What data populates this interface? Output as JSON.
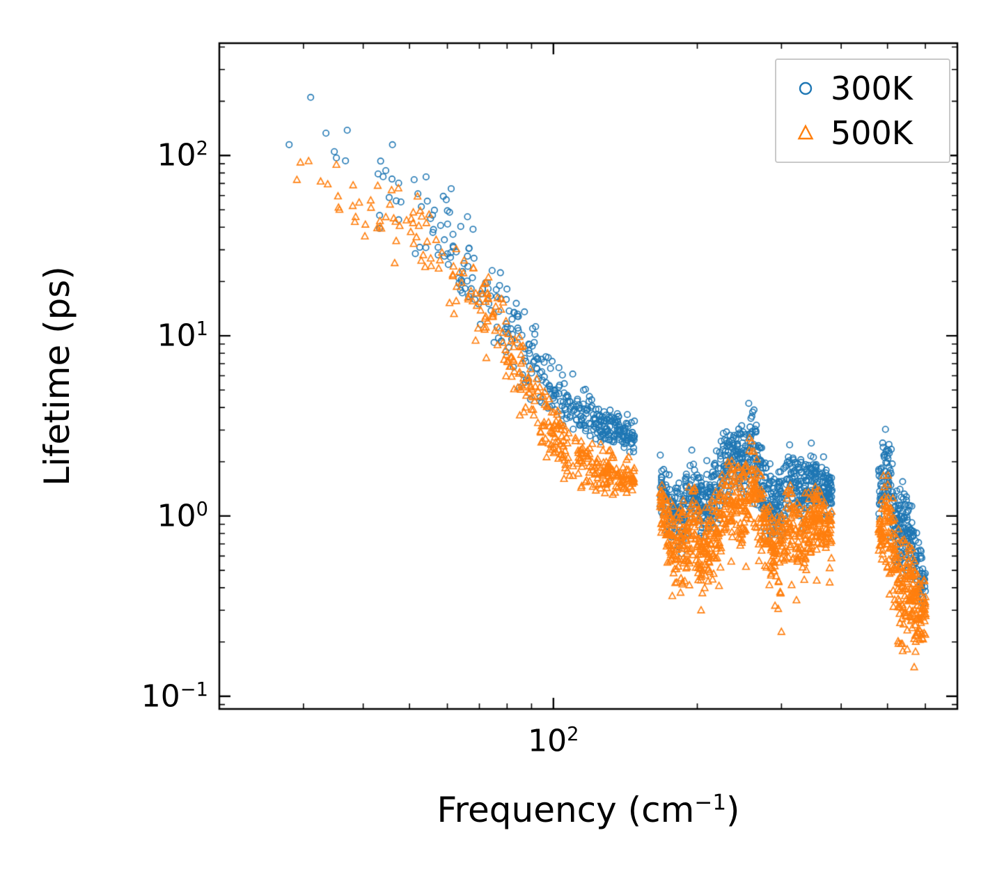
{
  "labels": {
    "ylabel": "Lifetime (ps)",
    "xlabel_pre": "Frequency (cm",
    "xlabel_sup": "−1",
    "xlabel_post": ")",
    "y_ticks": [
      {
        "base": "10",
        "exp": "−1"
      },
      {
        "base": "10",
        "exp": "0"
      },
      {
        "base": "10",
        "exp": "1"
      },
      {
        "base": "10",
        "exp": "2"
      }
    ],
    "x_ticks": [
      {
        "base": "10",
        "exp": "2"
      }
    ]
  },
  "chart_data": {
    "type": "scatter",
    "title": "",
    "xlabel": "Frequency (cm⁻¹)",
    "ylabel": "Lifetime (ps)",
    "xscale": "log",
    "yscale": "log",
    "xlim": [
      20,
      700
    ],
    "ylim": [
      0.085,
      420
    ],
    "grid": false,
    "x_major_ticks": [
      100
    ],
    "x_minor_ticks": [
      30,
      40,
      50,
      60,
      70,
      80,
      90,
      200,
      300,
      400,
      500,
      600
    ],
    "y_major_ticks": [
      0.1,
      1,
      10,
      100
    ],
    "y_minor_ticks": [
      0.09,
      0.2,
      0.3,
      0.4,
      0.5,
      0.6,
      0.7,
      0.8,
      0.9,
      2,
      3,
      4,
      5,
      6,
      7,
      8,
      9,
      20,
      30,
      40,
      50,
      60,
      70,
      80,
      90,
      200,
      300,
      400
    ],
    "frequency_gaps": [
      [
        148,
        167
      ],
      [
        383,
        479
      ]
    ],
    "legend": {
      "position": "upper right",
      "entries": [
        {
          "label": "300K",
          "marker": "circle",
          "color": "#1f77b4"
        },
        {
          "label": "500K",
          "marker": "triangle",
          "color": "#ff7f0e"
        }
      ]
    },
    "seed": 9,
    "series": [
      {
        "name": "300K",
        "marker": "circle",
        "color": "#1f77b4",
        "bands": [
          {
            "freq_range": [
              23,
              148
            ],
            "count": 380,
            "freq_bias": 0.35,
            "envelope": [
              [
                23,
                2.28,
                0.12
              ],
              [
                32,
                2.05,
                0.22
              ],
              [
                45,
                1.82,
                0.2
              ],
              [
                60,
                1.55,
                0.18
              ],
              [
                72,
                1.25,
                0.18
              ],
              [
                85,
                0.95,
                0.15
              ],
              [
                100,
                0.7,
                0.11
              ],
              [
                115,
                0.58,
                0.09
              ],
              [
                130,
                0.5,
                0.07
              ],
              [
                148,
                0.44,
                0.06
              ]
            ]
          },
          {
            "freq_range": [
              167,
              383
            ],
            "count": 780,
            "freq_bias": 1.0,
            "envelope": [
              [
                167,
                0.2,
                0.1
              ],
              [
                176,
                0.02,
                0.13
              ],
              [
                185,
                -0.02,
                0.13
              ],
              [
                195,
                0.14,
                0.14
              ],
              [
                205,
                0.06,
                0.14
              ],
              [
                215,
                0.1,
                0.14
              ],
              [
                228,
                0.28,
                0.15
              ],
              [
                240,
                0.34,
                0.16
              ],
              [
                252,
                0.3,
                0.16
              ],
              [
                258,
                0.42,
                0.17
              ],
              [
                266,
                0.3,
                0.16
              ],
              [
                278,
                0.12,
                0.14
              ],
              [
                290,
                0.06,
                0.13
              ],
              [
                302,
                0.1,
                0.14
              ],
              [
                312,
                0.22,
                0.14
              ],
              [
                322,
                0.16,
                0.13
              ],
              [
                334,
                0.1,
                0.13
              ],
              [
                348,
                0.2,
                0.12
              ],
              [
                362,
                0.16,
                0.11
              ],
              [
                383,
                0.12,
                0.1
              ]
            ]
          },
          {
            "freq_range": [
              479,
              601
            ],
            "count": 240,
            "freq_bias": 1.0,
            "envelope": [
              [
                479,
                0.1,
                0.14
              ],
              [
                492,
                0.26,
                0.15
              ],
              [
                505,
                0.18,
                0.16
              ],
              [
                518,
                0.0,
                0.16
              ],
              [
                532,
                -0.12,
                0.18
              ],
              [
                548,
                -0.06,
                0.16
              ],
              [
                565,
                -0.18,
                0.15
              ],
              [
                580,
                -0.3,
                0.13
              ],
              [
                601,
                -0.38,
                0.1
              ]
            ]
          }
        ]
      },
      {
        "name": "500K",
        "marker": "triangle",
        "color": "#ff7f0e",
        "bands": [
          {
            "freq_range": [
              23,
              148
            ],
            "count": 380,
            "freq_bias": 0.35,
            "envelope": [
              [
                23,
                2.06,
                0.1
              ],
              [
                32,
                1.8,
                0.18
              ],
              [
                45,
                1.62,
                0.16
              ],
              [
                60,
                1.4,
                0.15
              ],
              [
                72,
                1.12,
                0.15
              ],
              [
                85,
                0.8,
                0.14
              ],
              [
                100,
                0.42,
                0.12
              ],
              [
                115,
                0.3,
                0.1
              ],
              [
                130,
                0.24,
                0.08
              ],
              [
                148,
                0.2,
                0.07
              ]
            ]
          },
          {
            "freq_range": [
              167,
              383
            ],
            "count": 800,
            "freq_bias": 1.0,
            "low_tail": {
              "frac": 0.06,
              "mag": 0.3
            },
            "envelope": [
              [
                167,
                0.05,
                0.1
              ],
              [
                176,
                -0.12,
                0.14
              ],
              [
                185,
                -0.18,
                0.15
              ],
              [
                195,
                -0.02,
                0.15
              ],
              [
                205,
                -0.22,
                0.16
              ],
              [
                215,
                -0.12,
                0.15
              ],
              [
                228,
                0.05,
                0.15
              ],
              [
                240,
                0.12,
                0.16
              ],
              [
                252,
                0.1,
                0.16
              ],
              [
                258,
                0.22,
                0.16
              ],
              [
                266,
                0.1,
                0.16
              ],
              [
                278,
                -0.1,
                0.15
              ],
              [
                290,
                -0.18,
                0.15
              ],
              [
                302,
                -0.15,
                0.15
              ],
              [
                312,
                -0.02,
                0.14
              ],
              [
                322,
                -0.08,
                0.14
              ],
              [
                334,
                -0.12,
                0.14
              ],
              [
                348,
                -0.02,
                0.12
              ],
              [
                362,
                -0.06,
                0.12
              ],
              [
                383,
                -0.1,
                0.1
              ]
            ]
          },
          {
            "freq_range": [
              479,
              601
            ],
            "count": 270,
            "freq_bias": 1.0,
            "low_tail": {
              "frac": 0.08,
              "mag": 0.25
            },
            "envelope": [
              [
                479,
                -0.1,
                0.14
              ],
              [
                492,
                0.02,
                0.16
              ],
              [
                505,
                -0.05,
                0.17
              ],
              [
                518,
                -0.25,
                0.18
              ],
              [
                532,
                -0.45,
                0.24
              ],
              [
                548,
                -0.35,
                0.18
              ],
              [
                565,
                -0.42,
                0.16
              ],
              [
                580,
                -0.52,
                0.13
              ],
              [
                601,
                -0.55,
                0.1
              ]
            ]
          }
        ]
      }
    ]
  }
}
